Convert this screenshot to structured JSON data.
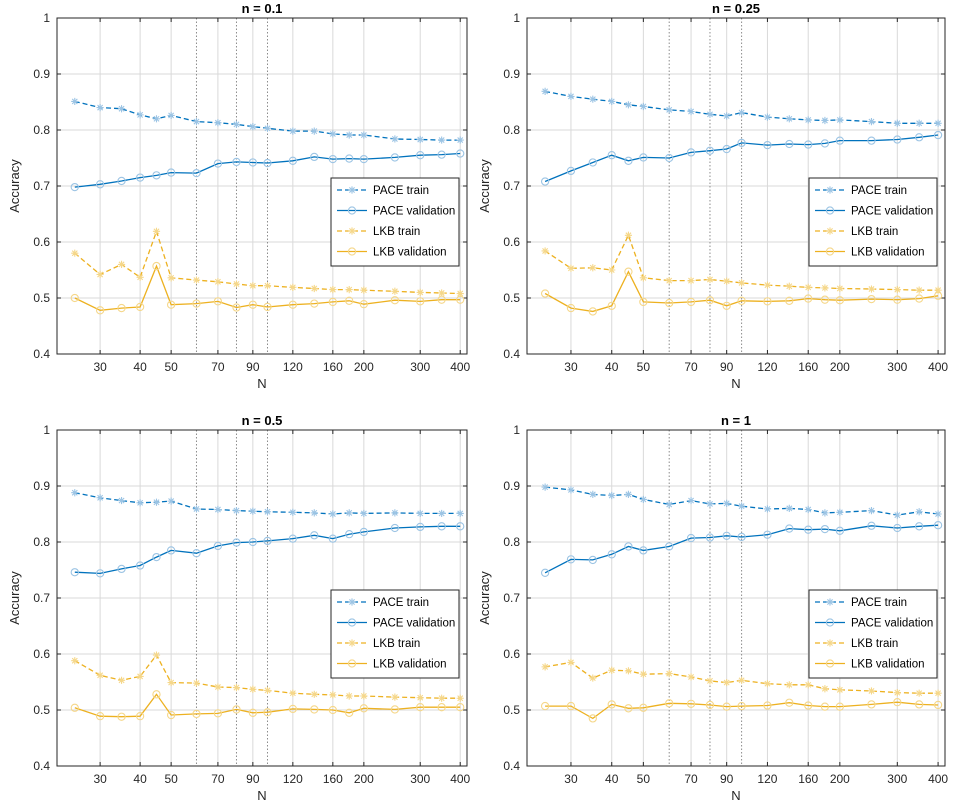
{
  "colors": {
    "pace": "#0072BD",
    "pace_marker": "#9CC4E4",
    "lkb": "#EDB120",
    "lkb_marker": "#F5D78A",
    "grid": "#D9D9D9",
    "axis": "#262626"
  },
  "chart_data": [
    {
      "type": "line",
      "title": "n = 0.1",
      "xlabel": "N",
      "ylabel": "Accuracy",
      "xscale": "log",
      "xlim": [
        22,
        420
      ],
      "ylim": [
        0.4,
        1
      ],
      "xticks": [
        30,
        40,
        50,
        70,
        90,
        120,
        160,
        200,
        300,
        400
      ],
      "xtick_labels": [
        "30",
        "40",
        "50",
        "70",
        "90",
        "120",
        "160",
        "200",
        "300",
        "400"
      ],
      "yticks": [
        0.4,
        0.5,
        0.6,
        0.7,
        0.8,
        0.9,
        1
      ],
      "ytick_labels": [
        "0.4",
        "0.5",
        "0.6",
        "0.7",
        "0.8",
        "0.9",
        "1"
      ],
      "vlines": [
        60,
        80,
        100
      ],
      "grid": true,
      "legend_position": "center-right",
      "x": [
        25,
        30,
        35,
        40,
        45,
        50,
        60,
        70,
        80,
        90,
        100,
        120,
        140,
        160,
        180,
        200,
        250,
        300,
        350,
        400
      ],
      "series": [
        {
          "name": "PACE train",
          "style": "dashed",
          "marker": "star",
          "color": "pace",
          "values": [
            0.851,
            0.84,
            0.838,
            0.827,
            0.82,
            0.826,
            0.815,
            0.813,
            0.81,
            0.806,
            0.803,
            0.798,
            0.798,
            0.793,
            0.791,
            0.791,
            0.784,
            0.783,
            0.782,
            0.782
          ]
        },
        {
          "name": "PACE validation",
          "style": "solid",
          "marker": "circle",
          "color": "pace",
          "values": [
            0.698,
            0.703,
            0.709,
            0.715,
            0.719,
            0.724,
            0.723,
            0.74,
            0.743,
            0.742,
            0.741,
            0.745,
            0.752,
            0.748,
            0.749,
            0.748,
            0.751,
            0.755,
            0.756,
            0.758
          ]
        },
        {
          "name": "LKB train",
          "style": "dashed",
          "marker": "star",
          "color": "lkb",
          "values": [
            0.58,
            0.542,
            0.56,
            0.537,
            0.619,
            0.536,
            0.532,
            0.529,
            0.525,
            0.522,
            0.522,
            0.519,
            0.517,
            0.515,
            0.515,
            0.514,
            0.512,
            0.51,
            0.509,
            0.508
          ]
        },
        {
          "name": "LKB validation",
          "style": "solid",
          "marker": "circle",
          "color": "lkb",
          "values": [
            0.5,
            0.478,
            0.482,
            0.484,
            0.557,
            0.488,
            0.49,
            0.494,
            0.483,
            0.488,
            0.484,
            0.488,
            0.49,
            0.493,
            0.495,
            0.489,
            0.496,
            0.494,
            0.497,
            0.497
          ]
        }
      ]
    },
    {
      "type": "line",
      "title": "n = 0.25",
      "xlabel": "N",
      "ylabel": "Accuracy",
      "xscale": "log",
      "xlim": [
        22,
        420
      ],
      "ylim": [
        0.4,
        1
      ],
      "xticks": [
        30,
        40,
        50,
        70,
        90,
        120,
        160,
        200,
        300,
        400
      ],
      "xtick_labels": [
        "30",
        "40",
        "50",
        "70",
        "90",
        "120",
        "160",
        "200",
        "300",
        "400"
      ],
      "yticks": [
        0.4,
        0.5,
        0.6,
        0.7,
        0.8,
        0.9,
        1
      ],
      "ytick_labels": [
        "0.4",
        "0.5",
        "0.6",
        "0.7",
        "0.8",
        "0.9",
        "1"
      ],
      "vlines": [
        60,
        80,
        100
      ],
      "grid": true,
      "legend_position": "center-right",
      "x": [
        25,
        30,
        35,
        40,
        45,
        50,
        60,
        70,
        80,
        90,
        100,
        120,
        140,
        160,
        180,
        200,
        250,
        300,
        350,
        400
      ],
      "series": [
        {
          "name": "PACE train",
          "style": "dashed",
          "marker": "star",
          "color": "pace",
          "values": [
            0.869,
            0.86,
            0.855,
            0.851,
            0.845,
            0.842,
            0.836,
            0.833,
            0.828,
            0.825,
            0.831,
            0.823,
            0.82,
            0.818,
            0.817,
            0.818,
            0.815,
            0.812,
            0.812,
            0.812
          ]
        },
        {
          "name": "PACE validation",
          "style": "solid",
          "marker": "circle",
          "color": "pace",
          "values": [
            0.708,
            0.727,
            0.742,
            0.755,
            0.745,
            0.751,
            0.75,
            0.76,
            0.763,
            0.766,
            0.777,
            0.773,
            0.775,
            0.774,
            0.776,
            0.781,
            0.781,
            0.783,
            0.787,
            0.791
          ]
        },
        {
          "name": "LKB train",
          "style": "dashed",
          "marker": "star",
          "color": "lkb",
          "values": [
            0.584,
            0.553,
            0.554,
            0.55,
            0.612,
            0.536,
            0.531,
            0.531,
            0.533,
            0.53,
            0.527,
            0.523,
            0.521,
            0.519,
            0.518,
            0.517,
            0.516,
            0.515,
            0.514,
            0.514
          ]
        },
        {
          "name": "LKB validation",
          "style": "solid",
          "marker": "circle",
          "color": "lkb",
          "values": [
            0.508,
            0.482,
            0.476,
            0.486,
            0.547,
            0.493,
            0.491,
            0.493,
            0.496,
            0.486,
            0.495,
            0.494,
            0.495,
            0.499,
            0.497,
            0.496,
            0.498,
            0.497,
            0.499,
            0.504
          ]
        }
      ]
    },
    {
      "type": "line",
      "title": "n = 0.5",
      "xlabel": "N",
      "ylabel": "Accuracy",
      "xscale": "log",
      "xlim": [
        22,
        420
      ],
      "ylim": [
        0.4,
        1
      ],
      "xticks": [
        30,
        40,
        50,
        70,
        90,
        120,
        160,
        200,
        300,
        400
      ],
      "xtick_labels": [
        "30",
        "40",
        "50",
        "70",
        "90",
        "120",
        "160",
        "200",
        "300",
        "400"
      ],
      "yticks": [
        0.4,
        0.5,
        0.6,
        0.7,
        0.8,
        0.9,
        1
      ],
      "ytick_labels": [
        "0.4",
        "0.5",
        "0.6",
        "0.7",
        "0.8",
        "0.9",
        "1"
      ],
      "vlines": [
        60,
        80,
        100
      ],
      "grid": true,
      "legend_position": "center-right",
      "x": [
        25,
        30,
        35,
        40,
        45,
        50,
        60,
        70,
        80,
        90,
        100,
        120,
        140,
        160,
        180,
        200,
        250,
        300,
        350,
        400
      ],
      "series": [
        {
          "name": "PACE train",
          "style": "dashed",
          "marker": "star",
          "color": "pace",
          "values": [
            0.888,
            0.879,
            0.874,
            0.87,
            0.871,
            0.873,
            0.859,
            0.858,
            0.856,
            0.855,
            0.854,
            0.853,
            0.852,
            0.85,
            0.852,
            0.851,
            0.852,
            0.851,
            0.851,
            0.851
          ]
        },
        {
          "name": "PACE validation",
          "style": "solid",
          "marker": "circle",
          "color": "pace",
          "values": [
            0.746,
            0.744,
            0.752,
            0.758,
            0.773,
            0.785,
            0.78,
            0.793,
            0.799,
            0.8,
            0.802,
            0.806,
            0.812,
            0.806,
            0.814,
            0.818,
            0.825,
            0.827,
            0.828,
            0.828
          ]
        },
        {
          "name": "LKB train",
          "style": "dashed",
          "marker": "star",
          "color": "lkb",
          "values": [
            0.588,
            0.562,
            0.553,
            0.56,
            0.598,
            0.549,
            0.548,
            0.541,
            0.54,
            0.537,
            0.535,
            0.53,
            0.528,
            0.527,
            0.525,
            0.525,
            0.523,
            0.522,
            0.521,
            0.521
          ]
        },
        {
          "name": "LKB validation",
          "style": "solid",
          "marker": "circle",
          "color": "lkb",
          "values": [
            0.504,
            0.489,
            0.488,
            0.489,
            0.528,
            0.491,
            0.493,
            0.494,
            0.501,
            0.495,
            0.496,
            0.502,
            0.501,
            0.5,
            0.495,
            0.503,
            0.501,
            0.505,
            0.505,
            0.505
          ]
        }
      ]
    },
    {
      "type": "line",
      "title": "n = 1",
      "xlabel": "N",
      "ylabel": "Accuracy",
      "xscale": "log",
      "xlim": [
        22,
        420
      ],
      "ylim": [
        0.4,
        1
      ],
      "xticks": [
        30,
        40,
        50,
        70,
        90,
        120,
        160,
        200,
        300,
        400
      ],
      "xtick_labels": [
        "30",
        "40",
        "50",
        "70",
        "90",
        "120",
        "160",
        "200",
        "300",
        "400"
      ],
      "yticks": [
        0.4,
        0.5,
        0.6,
        0.7,
        0.8,
        0.9,
        1
      ],
      "ytick_labels": [
        "0.4",
        "0.5",
        "0.6",
        "0.7",
        "0.8",
        "0.9",
        "1"
      ],
      "vlines": [
        60,
        80,
        100
      ],
      "grid": true,
      "legend_position": "center-right",
      "x": [
        25,
        30,
        35,
        40,
        45,
        50,
        60,
        70,
        80,
        90,
        100,
        120,
        140,
        160,
        180,
        200,
        250,
        300,
        350,
        400
      ],
      "series": [
        {
          "name": "PACE train",
          "style": "dashed",
          "marker": "star",
          "color": "pace",
          "values": [
            0.898,
            0.893,
            0.885,
            0.883,
            0.885,
            0.876,
            0.867,
            0.874,
            0.868,
            0.869,
            0.864,
            0.859,
            0.86,
            0.858,
            0.852,
            0.853,
            0.856,
            0.848,
            0.854,
            0.85
          ]
        },
        {
          "name": "PACE validation",
          "style": "solid",
          "marker": "circle",
          "color": "pace",
          "values": [
            0.745,
            0.769,
            0.768,
            0.778,
            0.792,
            0.785,
            0.792,
            0.807,
            0.808,
            0.811,
            0.809,
            0.813,
            0.824,
            0.822,
            0.823,
            0.82,
            0.829,
            0.825,
            0.828,
            0.83
          ]
        },
        {
          "name": "LKB train",
          "style": "dashed",
          "marker": "star",
          "color": "lkb",
          "values": [
            0.577,
            0.585,
            0.557,
            0.571,
            0.57,
            0.564,
            0.565,
            0.559,
            0.552,
            0.549,
            0.553,
            0.547,
            0.545,
            0.545,
            0.538,
            0.536,
            0.534,
            0.531,
            0.53,
            0.53
          ]
        },
        {
          "name": "LKB validation",
          "style": "solid",
          "marker": "circle",
          "color": "lkb",
          "values": [
            0.507,
            0.507,
            0.485,
            0.51,
            0.503,
            0.504,
            0.512,
            0.511,
            0.509,
            0.506,
            0.507,
            0.508,
            0.513,
            0.508,
            0.506,
            0.506,
            0.51,
            0.514,
            0.51,
            0.509
          ]
        }
      ]
    }
  ]
}
